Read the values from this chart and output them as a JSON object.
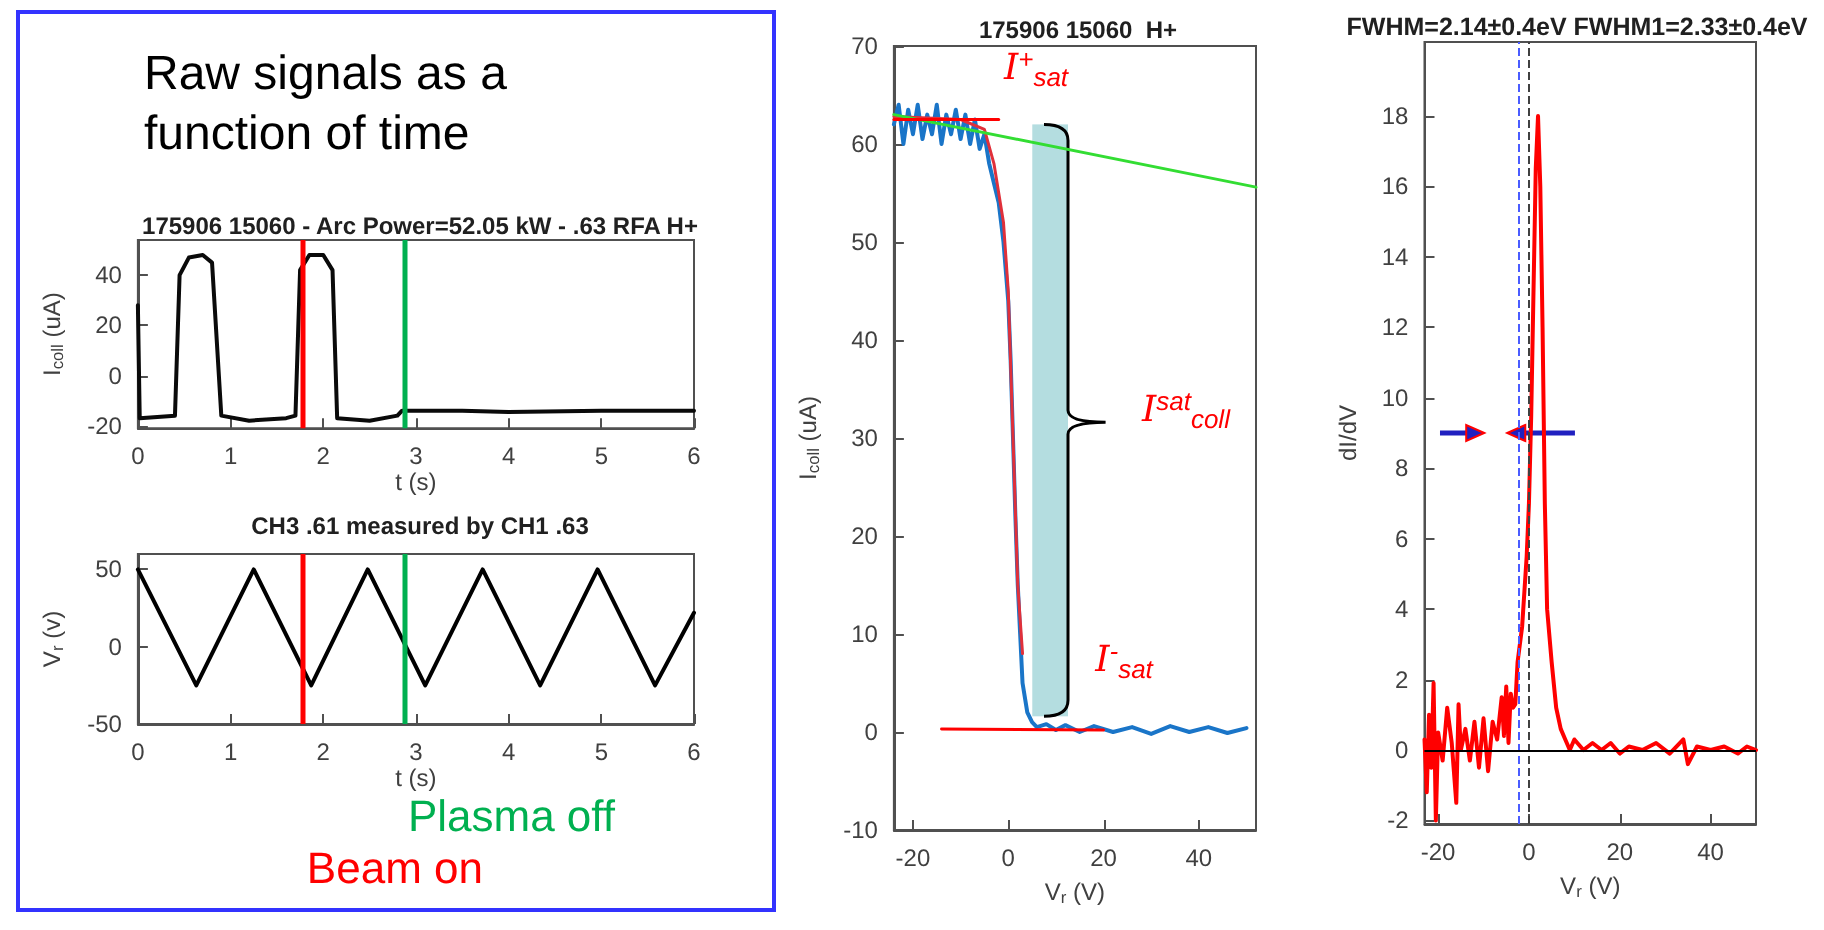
{
  "chart_data": [
    {
      "type": "line",
      "title": "175906 15060 - Arc Power=52.05 kW - .63 RFA H+",
      "xlabel": "t (s)",
      "ylabel": "I$_{coll}$ (uA)",
      "annotations": [
        "Raw signals as a function of time"
      ],
      "x": [
        0,
        0.02,
        0.4,
        0.45,
        0.55,
        0.7,
        0.8,
        0.9,
        1.2,
        1.6,
        1.7,
        1.75,
        1.85,
        2.0,
        2.1,
        2.15,
        2.5,
        2.8,
        2.85,
        3.5,
        4,
        5,
        6
      ],
      "series": [
        {
          "color": "#0a0a0a",
          "values": [
            28,
            -17,
            -16,
            40,
            47,
            48,
            45,
            -16,
            -18,
            -17,
            -16,
            42,
            48,
            48,
            42,
            -17,
            -18,
            -16,
            -14,
            -14,
            -14.5,
            -14,
            -14
          ]
        }
      ],
      "xlim": [
        0,
        6
      ],
      "xticks": [
        0,
        1,
        2,
        3,
        4,
        5,
        6
      ],
      "ylim": [
        -21,
        54
      ],
      "yticks": [
        -20,
        0,
        20,
        40
      ],
      "grid": false,
      "ref_lines": [
        {
          "axis": "x",
          "value": 1.78,
          "color": "#ff0000"
        },
        {
          "axis": "x",
          "value": 2.87,
          "color": "#00b050"
        }
      ]
    },
    {
      "type": "line",
      "title": "CH3 .61 measured by CH1 .63",
      "xlabel": "t (s)",
      "ylabel": "V$_{r}$ (v)",
      "x": [
        0,
        0.63,
        1.25,
        1.87,
        2.48,
        3.1,
        3.72,
        4.34,
        4.96,
        5.58,
        6
      ],
      "series": [
        {
          "color": "#000000",
          "values": [
            50,
            -25,
            50,
            -25,
            50,
            -25,
            50,
            -25,
            50,
            -25,
            22
          ]
        }
      ],
      "xlim": [
        0,
        6
      ],
      "xticks": [
        0,
        1,
        2,
        3,
        4,
        5,
        6
      ],
      "ylim": [
        -50,
        60
      ],
      "yticks": [
        -50,
        0,
        50
      ],
      "grid": false,
      "ref_lines": [
        {
          "axis": "x",
          "value": 1.78,
          "label": "Beam on",
          "color": "#ff0000"
        },
        {
          "axis": "x",
          "value": 2.87,
          "label": "Plasma off",
          "color": "#00b050"
        }
      ]
    },
    {
      "type": "line",
      "title": "175906 15060  H+",
      "xlabel": "V$_{r}$ (V)",
      "ylabel": "I$_{coll}$ (uA)",
      "annotations": [
        "I$^{+}$$_{sat}$",
        "I$^{sat}$$_{coll}$",
        "I$^{-}$$_{sat}$"
      ],
      "series": [
        {
          "color": "#1a75c8",
          "x": [
            -24,
            -23,
            -22,
            -21,
            -20,
            -19,
            -18,
            -17,
            -16,
            -15,
            -14,
            -13,
            -12,
            -11,
            -10,
            -9,
            -8,
            -7,
            -6,
            -5,
            -4,
            -3,
            -2,
            -1,
            0,
            0.5,
            1,
            1.5,
            2,
            2.5,
            3,
            4,
            5,
            6,
            8,
            10,
            12,
            15,
            18,
            22,
            26,
            30,
            34,
            38,
            42,
            46,
            50
          ],
          "values": [
            62,
            64,
            60,
            63.5,
            61,
            64,
            60.5,
            63,
            61,
            64,
            60,
            63,
            61,
            63.5,
            60.5,
            63,
            60,
            62.5,
            59.5,
            61,
            58,
            56,
            54,
            50,
            44,
            38,
            30,
            22,
            15,
            10,
            5,
            2,
            1,
            0.5,
            0.8,
            0.2,
            0.7,
            0,
            0.6,
            0,
            0.5,
            -0.2,
            0.6,
            0,
            0.5,
            -0.1,
            0.4
          ]
        },
        {
          "color": "#e0303a",
          "x": [
            -24,
            -10,
            -5,
            -3,
            -1,
            0,
            1,
            2,
            3
          ],
          "values": [
            62.8,
            62.5,
            61.5,
            58,
            52,
            45,
            30,
            15,
            8
          ]
        },
        {
          "color": "#33dd33",
          "x": [
            -24,
            52
          ],
          "values": [
            63,
            55.6
          ]
        },
        {
          "color": "#ff0000",
          "x": [
            -24,
            -2
          ],
          "values": [
            62.5,
            62.5
          ]
        },
        {
          "color": "#ff0000",
          "x": [
            -14,
            20
          ],
          "values": [
            0.3,
            0.2
          ]
        }
      ],
      "xlim": [
        -24,
        52
      ],
      "xticks": [
        -20,
        0,
        20,
        40
      ],
      "ylim": [
        -10,
        70
      ],
      "yticks": [
        -10,
        0,
        10,
        20,
        30,
        40,
        50,
        60,
        70
      ],
      "grid": false
    },
    {
      "type": "line",
      "title": "FWHM=2.14±0.4eV FWHM1=2.33±0.4eV",
      "xlabel": "V$_{r}$ (V)",
      "ylabel": "dI/dV",
      "x": [
        -23,
        -22.5,
        -22,
        -21.5,
        -21,
        -20.5,
        -20,
        -19,
        -18,
        -17,
        -16,
        -15.5,
        -15,
        -14,
        -13,
        -12,
        -11,
        -10,
        -9,
        -8,
        -7,
        -6,
        -5.5,
        -5,
        -4.5,
        -4,
        -3.5,
        -3,
        -2.5,
        -1.5,
        -0.5,
        0,
        0.5,
        1,
        1.5,
        2,
        2.5,
        3,
        3.5,
        4,
        5,
        6,
        7,
        8,
        9,
        10,
        12,
        14,
        16,
        18,
        20,
        22,
        25,
        28,
        31,
        34,
        35,
        37,
        40,
        43,
        46,
        48,
        50
      ],
      "series": [
        {
          "color": "#ff0000",
          "values": [
            0.3,
            -1.2,
            1,
            -0.5,
            1.9,
            -2,
            0.5,
            -0.3,
            1.2,
            0.2,
            -1.5,
            1.3,
            0,
            0.6,
            -0.3,
            0.8,
            -0.5,
            0.9,
            -0.6,
            0.8,
            0.3,
            1.5,
            0.4,
            1.8,
            0.2,
            1.6,
            1.2,
            1.3,
            2.5,
            3.5,
            5.5,
            7,
            9.5,
            13,
            16.5,
            18,
            16,
            12,
            7,
            4,
            2.5,
            1.2,
            0.6,
            0.3,
            0,
            0.3,
            0,
            0.2,
            0,
            0.2,
            -0.1,
            0.1,
            0,
            0.2,
            -0.1,
            0.3,
            -0.4,
            0.1,
            0,
            0.1,
            -0.1,
            0.1,
            0
          ]
        }
      ],
      "xlim": [
        -23,
        50
      ],
      "xticks": [
        -20,
        0,
        20,
        40
      ],
      "ylim": [
        -2.1,
        20.1
      ],
      "yticks": [
        -2,
        0,
        2,
        4,
        6,
        8,
        10,
        12,
        14,
        16,
        18
      ],
      "grid": false,
      "ref_lines": [
        {
          "axis": "x",
          "value": 0,
          "color": "#404040",
          "line_style": "dashed"
        },
        {
          "axis": "x",
          "value": -2.5,
          "color": "#4a5cff",
          "line_style": "dashed"
        },
        {
          "axis": "y",
          "value": 0,
          "color": "#000000"
        }
      ]
    }
  ]
}
